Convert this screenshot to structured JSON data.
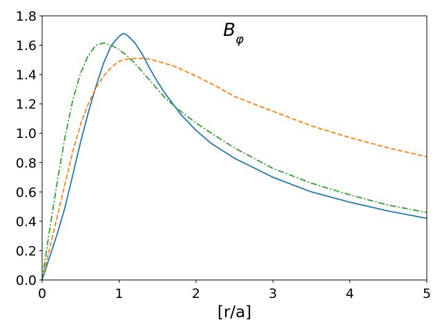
{
  "chart_data": {
    "type": "line",
    "title_main": "B",
    "title_sub": "φ",
    "xlabel": "[r/a]",
    "ylabel": "",
    "xlim": [
      0,
      5
    ],
    "ylim": [
      0,
      1.8
    ],
    "xticks": [
      0,
      1,
      2,
      3,
      4,
      5
    ],
    "xtick_labels": [
      "0",
      "1",
      "2",
      "3",
      "4",
      "5"
    ],
    "yticks": [
      0.0,
      0.2,
      0.4,
      0.6,
      0.8,
      1.0,
      1.2,
      1.4,
      1.6,
      1.8
    ],
    "ytick_labels": [
      "0.0",
      "0.2",
      "0.4",
      "0.6",
      "0.8",
      "1.0",
      "1.2",
      "1.4",
      "1.6",
      "1.8"
    ],
    "grid": false,
    "series": [
      {
        "color": "#1f77b4",
        "style": "solid",
        "x": [
          0,
          0.1,
          0.2,
          0.3,
          0.4,
          0.5,
          0.6,
          0.7,
          0.8,
          0.9,
          1.0,
          1.05,
          1.1,
          1.2,
          1.3,
          1.4,
          1.5,
          1.6,
          1.7,
          1.8,
          2.0,
          2.2,
          2.5,
          3.0,
          3.5,
          4.0,
          4.5,
          5.0
        ],
        "y": [
          0,
          0.16,
          0.32,
          0.5,
          0.72,
          0.94,
          1.14,
          1.32,
          1.48,
          1.6,
          1.66,
          1.68,
          1.67,
          1.62,
          1.54,
          1.44,
          1.35,
          1.27,
          1.2,
          1.13,
          1.02,
          0.93,
          0.83,
          0.7,
          0.6,
          0.53,
          0.47,
          0.42
        ]
      },
      {
        "color": "#ff7f0e",
        "style": "dashed",
        "x": [
          0,
          0.1,
          0.2,
          0.3,
          0.4,
          0.5,
          0.6,
          0.7,
          0.8,
          0.9,
          1.0,
          1.1,
          1.2,
          1.3,
          1.4,
          1.5,
          1.7,
          2.0,
          2.3,
          2.5,
          3.0,
          3.5,
          4.0,
          4.5,
          5.0
        ],
        "y": [
          0,
          0.22,
          0.44,
          0.66,
          0.88,
          1.06,
          1.2,
          1.31,
          1.39,
          1.45,
          1.49,
          1.505,
          1.51,
          1.51,
          1.505,
          1.49,
          1.46,
          1.39,
          1.31,
          1.25,
          1.15,
          1.05,
          0.97,
          0.9,
          0.84
        ]
      },
      {
        "color": "#2ca02c",
        "style": "dashdot",
        "x": [
          0,
          0.1,
          0.2,
          0.3,
          0.4,
          0.5,
          0.6,
          0.7,
          0.8,
          0.9,
          1.0,
          1.1,
          1.2,
          1.4,
          1.6,
          1.8,
          2.0,
          2.2,
          2.5,
          3.0,
          3.5,
          4.0,
          4.5,
          5.0
        ],
        "y": [
          0,
          0.35,
          0.68,
          0.98,
          1.23,
          1.41,
          1.53,
          1.6,
          1.615,
          1.6,
          1.57,
          1.53,
          1.48,
          1.36,
          1.24,
          1.15,
          1.07,
          1.0,
          0.9,
          0.76,
          0.66,
          0.58,
          0.51,
          0.46
        ]
      }
    ]
  }
}
